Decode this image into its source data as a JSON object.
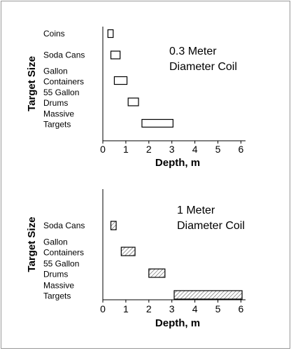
{
  "chart_data": [
    {
      "type": "bar",
      "orientation": "horizontal-range",
      "annotation_lines": [
        "0.3 Meter",
        "Diameter Coil"
      ],
      "ylabel": "Target Size",
      "xlabel": "Depth, m",
      "xlim": [
        0,
        6.2
      ],
      "xticks": [
        0,
        1,
        2,
        3,
        4,
        5,
        6
      ],
      "fill": "none",
      "categories": [
        {
          "lines": [
            "Coins"
          ],
          "range": [
            0.22,
            0.45
          ]
        },
        {
          "lines": [
            "Soda Cans"
          ],
          "range": [
            0.35,
            0.75
          ]
        },
        {
          "lines": [
            "Gallon",
            "Containers"
          ],
          "range": [
            0.5,
            1.05
          ]
        },
        {
          "lines": [
            "55 Gallon",
            "Drums"
          ],
          "range": [
            1.1,
            1.55
          ]
        },
        {
          "lines": [
            "Massive",
            "Targets"
          ],
          "range": [
            1.7,
            3.05
          ]
        }
      ]
    },
    {
      "type": "bar",
      "orientation": "horizontal-range",
      "annotation_lines": [
        "1 Meter",
        "Diameter Coil"
      ],
      "ylabel": "Target Size",
      "xlabel": "Depth, m",
      "xlim": [
        0,
        6.2
      ],
      "xticks": [
        0,
        1,
        2,
        3,
        4,
        5,
        6
      ],
      "fill": "hatched",
      "categories": [
        {
          "lines": [
            "Soda Cans"
          ],
          "range": [
            0.35,
            0.58
          ]
        },
        {
          "lines": [
            "Gallon",
            "Containers"
          ],
          "range": [
            0.8,
            1.4
          ]
        },
        {
          "lines": [
            "55 Gallon",
            "Drums"
          ],
          "range": [
            2.0,
            2.7
          ]
        },
        {
          "lines": [
            "Massive",
            "Targets"
          ],
          "range": [
            3.1,
            6.05
          ]
        }
      ]
    }
  ]
}
